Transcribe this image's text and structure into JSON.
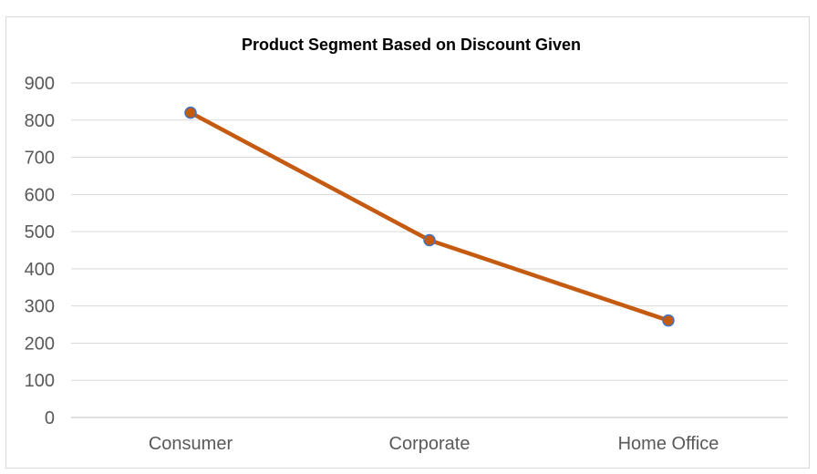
{
  "chart_data": {
    "type": "line",
    "title": "Product Segment Based on Discount Given",
    "categories": [
      "Consumer",
      "Corporate",
      "Home Office"
    ],
    "series": [
      {
        "values": [
          820,
          477,
          261
        ],
        "line_color": "#C55A11",
        "marker_fill": "#C55A11",
        "marker_stroke": "#4472C4"
      }
    ],
    "ylim": [
      0,
      900
    ],
    "yticks": [
      0,
      100,
      200,
      300,
      400,
      500,
      600,
      700,
      800,
      900
    ],
    "grid": true,
    "legend": "none",
    "gridline_color": "#d9d9d9",
    "axis_color": "#bfbfbf"
  }
}
